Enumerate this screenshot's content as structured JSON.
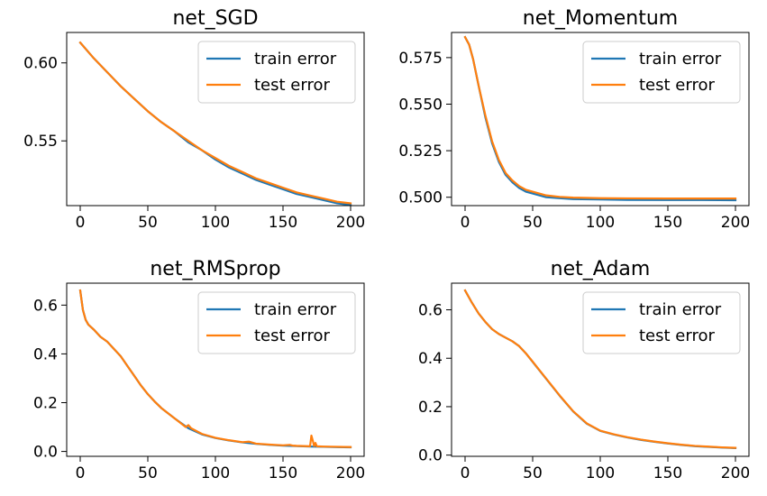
{
  "colors": {
    "train": "#1f77b4",
    "test": "#ff7f0e"
  },
  "chart_data": [
    {
      "type": "line",
      "title": "net_SGD",
      "xlabel": "",
      "ylabel": "",
      "xlim": [
        -10,
        210
      ],
      "ylim": [
        0.5085,
        0.6195
      ],
      "xticks": [
        0,
        50,
        100,
        150,
        200
      ],
      "yticks": [
        0.55,
        0.6
      ],
      "ytick_labels": [
        "0.55",
        "0.60"
      ],
      "grid": false,
      "legend": "upper right",
      "series": [
        {
          "name": "train error",
          "x": [
            0,
            10,
            20,
            30,
            40,
            50,
            60,
            70,
            80,
            90,
            100,
            110,
            120,
            130,
            140,
            150,
            160,
            170,
            180,
            190,
            200
          ],
          "y": [
            0.613,
            0.603,
            0.594,
            0.585,
            0.577,
            0.569,
            0.562,
            0.556,
            0.549,
            0.544,
            0.538,
            0.533,
            0.529,
            0.525,
            0.522,
            0.519,
            0.516,
            0.514,
            0.512,
            0.51,
            0.509
          ]
        },
        {
          "name": "test error",
          "x": [
            0,
            10,
            20,
            30,
            40,
            50,
            60,
            70,
            80,
            90,
            100,
            110,
            120,
            130,
            140,
            150,
            160,
            170,
            180,
            190,
            200
          ],
          "y": [
            0.613,
            0.603,
            0.594,
            0.585,
            0.577,
            0.569,
            0.562,
            0.556,
            0.55,
            0.544,
            0.539,
            0.534,
            0.53,
            0.526,
            0.523,
            0.52,
            0.517,
            0.515,
            0.513,
            0.511,
            0.51
          ]
        }
      ]
    },
    {
      "type": "line",
      "title": "net_Momentum",
      "xlabel": "",
      "ylabel": "",
      "xlim": [
        -10,
        210
      ],
      "ylim": [
        0.4955,
        0.5885
      ],
      "xticks": [
        0,
        50,
        100,
        150,
        200
      ],
      "yticks": [
        0.5,
        0.525,
        0.55,
        0.575
      ],
      "ytick_labels": [
        "0.500",
        "0.525",
        "0.550",
        "0.575"
      ],
      "grid": false,
      "legend": "upper right",
      "series": [
        {
          "name": "train error",
          "x": [
            0,
            3,
            6,
            10,
            15,
            20,
            25,
            30,
            35,
            40,
            45,
            50,
            60,
            70,
            80,
            100,
            120,
            150,
            175,
            200
          ],
          "y": [
            0.586,
            0.582,
            0.574,
            0.56,
            0.543,
            0.529,
            0.519,
            0.512,
            0.508,
            0.505,
            0.503,
            0.502,
            0.5,
            0.4995,
            0.499,
            0.4988,
            0.4986,
            0.4985,
            0.4985,
            0.4984
          ]
        },
        {
          "name": "test error",
          "x": [
            0,
            3,
            6,
            10,
            15,
            20,
            25,
            30,
            35,
            40,
            45,
            50,
            60,
            70,
            80,
            100,
            120,
            150,
            175,
            200
          ],
          "y": [
            0.586,
            0.582,
            0.574,
            0.56,
            0.544,
            0.53,
            0.52,
            0.513,
            0.509,
            0.506,
            0.504,
            0.503,
            0.501,
            0.5002,
            0.4998,
            0.4995,
            0.4994,
            0.4993,
            0.4993,
            0.4993
          ]
        }
      ]
    },
    {
      "type": "line",
      "title": "net_RMSprop",
      "xlabel": "",
      "ylabel": "",
      "xlim": [
        -10,
        210
      ],
      "ylim": [
        -0.02,
        0.69
      ],
      "xticks": [
        0,
        50,
        100,
        150,
        200
      ],
      "yticks": [
        0.0,
        0.2,
        0.4,
        0.6
      ],
      "ytick_labels": [
        "0.0",
        "0.2",
        "0.4",
        "0.6"
      ],
      "grid": false,
      "legend": "upper right",
      "series": [
        {
          "name": "train error",
          "x": [
            0,
            2,
            4,
            6,
            10,
            15,
            20,
            25,
            30,
            35,
            40,
            45,
            50,
            55,
            60,
            70,
            80,
            90,
            100,
            110,
            120,
            130,
            140,
            150,
            160,
            170,
            180,
            190,
            200
          ],
          "y": [
            0.66,
            0.58,
            0.54,
            0.52,
            0.5,
            0.47,
            0.45,
            0.42,
            0.39,
            0.35,
            0.31,
            0.27,
            0.235,
            0.205,
            0.178,
            0.135,
            0.095,
            0.07,
            0.055,
            0.045,
            0.037,
            0.031,
            0.027,
            0.024,
            0.022,
            0.02,
            0.019,
            0.018,
            0.017
          ]
        },
        {
          "name": "test error",
          "x": [
            0,
            2,
            4,
            6,
            10,
            15,
            20,
            25,
            30,
            35,
            40,
            45,
            50,
            55,
            60,
            70,
            78,
            80,
            82,
            90,
            100,
            110,
            120,
            125,
            130,
            140,
            150,
            155,
            157,
            160,
            170,
            171,
            172,
            173,
            174,
            175,
            180,
            190,
            200
          ],
          "y": [
            0.66,
            0.58,
            0.54,
            0.52,
            0.5,
            0.47,
            0.45,
            0.42,
            0.39,
            0.35,
            0.31,
            0.27,
            0.235,
            0.205,
            0.178,
            0.135,
            0.1,
            0.108,
            0.095,
            0.072,
            0.056,
            0.046,
            0.038,
            0.04,
            0.032,
            0.028,
            0.025,
            0.027,
            0.024,
            0.023,
            0.021,
            0.065,
            0.045,
            0.022,
            0.035,
            0.021,
            0.02,
            0.019,
            0.018
          ]
        }
      ]
    },
    {
      "type": "line",
      "title": "net_Adam",
      "xlabel": "",
      "ylabel": "",
      "xlim": [
        -10,
        210
      ],
      "ylim": [
        -0.005,
        0.71
      ],
      "xticks": [
        0,
        50,
        100,
        150,
        200
      ],
      "yticks": [
        0.0,
        0.2,
        0.4,
        0.6
      ],
      "ytick_labels": [
        "0.0",
        "0.2",
        "0.4",
        "0.6"
      ],
      "grid": false,
      "legend": "upper right",
      "series": [
        {
          "name": "train error",
          "x": [
            0,
            5,
            10,
            15,
            20,
            25,
            30,
            35,
            40,
            45,
            50,
            55,
            60,
            70,
            80,
            90,
            100,
            110,
            120,
            130,
            140,
            150,
            160,
            170,
            180,
            190,
            200
          ],
          "y": [
            0.68,
            0.63,
            0.585,
            0.55,
            0.52,
            0.5,
            0.485,
            0.47,
            0.45,
            0.42,
            0.385,
            0.35,
            0.315,
            0.245,
            0.18,
            0.13,
            0.1,
            0.085,
            0.073,
            0.063,
            0.055,
            0.048,
            0.042,
            0.037,
            0.034,
            0.031,
            0.029
          ]
        },
        {
          "name": "test error",
          "x": [
            0,
            5,
            10,
            15,
            20,
            25,
            30,
            35,
            40,
            45,
            50,
            55,
            60,
            70,
            80,
            90,
            100,
            110,
            120,
            130,
            140,
            150,
            160,
            170,
            180,
            190,
            200
          ],
          "y": [
            0.68,
            0.63,
            0.585,
            0.55,
            0.52,
            0.5,
            0.485,
            0.47,
            0.45,
            0.42,
            0.386,
            0.351,
            0.316,
            0.246,
            0.181,
            0.131,
            0.101,
            0.086,
            0.074,
            0.064,
            0.056,
            0.049,
            0.043,
            0.038,
            0.035,
            0.032,
            0.03
          ]
        }
      ]
    }
  ]
}
